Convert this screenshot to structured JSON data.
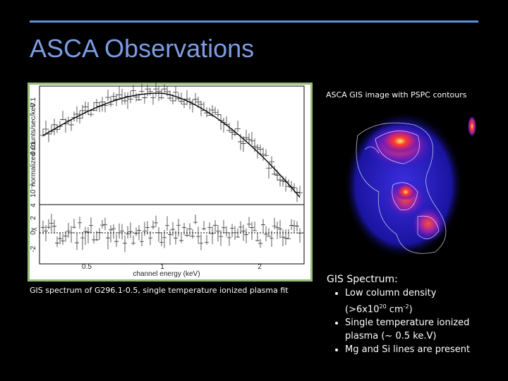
{
  "header": {
    "title": "ASCA Observations"
  },
  "spectrum_plot": {
    "y_label": "normalized counts/sec/keV",
    "y_ticks": [
      "0.1",
      "0.01",
      "10⁻³"
    ],
    "residual_label": "χ",
    "residual_ticks": [
      "4",
      "2",
      "0",
      "-2"
    ],
    "x_ticks": [
      "0.5",
      "1",
      "2"
    ],
    "x_label": "channel energy (keV)",
    "caption": "GIS spectrum of G296.1-0.5, single temperature ionized plasma fit"
  },
  "image_panel": {
    "caption": "ASCA GIS image with PSPC contours"
  },
  "notes": {
    "heading": "GIS Spectrum:",
    "bullets": [
      [
        {
          "text": "Low column density (>6x10"
        },
        {
          "sup": "20"
        },
        {
          "text": " cm"
        },
        {
          "sup": "-2"
        },
        {
          "text": ")"
        }
      ],
      [
        {
          "text": "Single temperature ionized plasma (~ 0.5 ke.V)"
        }
      ],
      [
        {
          "text": "Mg and Si lines are present"
        }
      ]
    ]
  }
}
